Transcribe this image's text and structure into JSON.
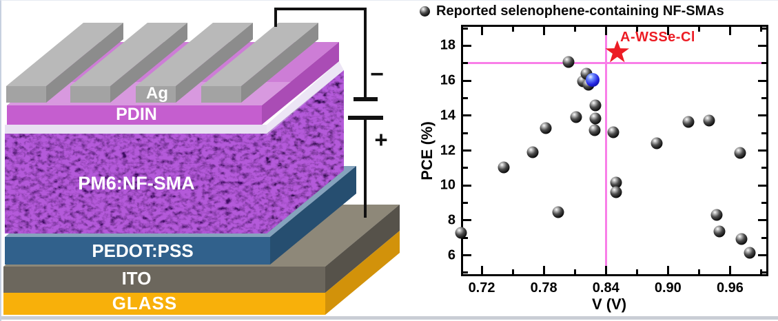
{
  "device": {
    "labels": {
      "ag": "Ag",
      "pdin": "PDIN",
      "active": "PM6:NF-SMA",
      "pedot": "PEDOT:PSS",
      "ito": "ITO",
      "glass": "GLASS",
      "minus": "−",
      "plus": "+"
    },
    "colors": {
      "ag_front": "#a3a3a3",
      "ag_top": "#b9b9b9",
      "ag_side": "#8c8c8c",
      "pdin_front": "#c55ecf",
      "pdin_top": "#cd7dd6",
      "pdin_side": "#aa4cb5",
      "active_front": "#3c0e63",
      "active_side": "#2f0a4f",
      "pedot_front": "#31618c",
      "pedot_top": "#85a3bd",
      "pedot_side": "#264e70",
      "ito_front": "#6c675d",
      "ito_top": "#8e8879",
      "ito_side": "#56524a",
      "glass_front": "#f8b00a",
      "glass_side": "#d2920a",
      "wire": "#111111"
    }
  },
  "chart": {
    "legend": "Reported selenophene-containing NF-SMAs",
    "annotation": "A-WSSe-Cl",
    "xlabel": "V (V)",
    "ylabel": "PCE (%)"
  },
  "chart_data": {
    "type": "scatter",
    "xlabel": "V (V)",
    "ylabel": "PCE (%)",
    "xlim": [
      0.7,
      0.997
    ],
    "ylim": [
      4.8,
      19.2
    ],
    "grid": false,
    "legend": "Reported selenophene-containing NF-SMAs",
    "legend_position": "top-center",
    "x_major_ticks": [
      0.72,
      0.78,
      0.84,
      0.9,
      0.96
    ],
    "x_major_labels": [
      "0.72",
      "0.78",
      "0.84",
      "0.90",
      "0.96"
    ],
    "x_minor_ticks": [
      0.75,
      0.81,
      0.87,
      0.93,
      0.99
    ],
    "y_major_ticks": [
      6,
      8,
      10,
      12,
      14,
      16,
      18
    ],
    "y_major_labels": [
      "6",
      "8",
      "10",
      "12",
      "14",
      "16",
      "18"
    ],
    "y_minor_ticks": [
      5,
      7,
      9,
      11,
      13,
      15,
      17,
      19
    ],
    "crosshair": {
      "x": 0.84,
      "y": 17.0,
      "color": "#f97ee8"
    },
    "series": [
      {
        "name": "Reported selenophene-containing NF-SMAs",
        "marker": "sphere-black",
        "color": "#000000",
        "points": [
          [
            0.7,
            7.3
          ],
          [
            0.741,
            11.05
          ],
          [
            0.769,
            11.9
          ],
          [
            0.782,
            13.3
          ],
          [
            0.794,
            8.45
          ],
          [
            0.804,
            17.05
          ],
          [
            0.811,
            13.9
          ],
          [
            0.818,
            15.95
          ],
          [
            0.821,
            16.4
          ],
          [
            0.823,
            15.75
          ],
          [
            0.83,
            14.6
          ],
          [
            0.83,
            13.85
          ],
          [
            0.829,
            13.15
          ],
          [
            0.847,
            13.05
          ],
          [
            0.85,
            10.15
          ],
          [
            0.85,
            9.6
          ],
          [
            0.889,
            12.4
          ],
          [
            0.92,
            13.65
          ],
          [
            0.94,
            13.7
          ],
          [
            0.947,
            8.3
          ],
          [
            0.95,
            7.35
          ],
          [
            0.97,
            11.85
          ],
          [
            0.971,
            6.95
          ],
          [
            0.979,
            6.15
          ]
        ]
      },
      {
        "name": "highlighted blue point",
        "marker": "sphere-blue",
        "color": "#2222e0",
        "points": [
          [
            0.827,
            16.05
          ]
        ]
      },
      {
        "name": "A-WSSe-Cl",
        "marker": "star-red",
        "color": "#ec1c24",
        "points": [
          [
            0.851,
            17.6
          ]
        ]
      }
    ]
  }
}
